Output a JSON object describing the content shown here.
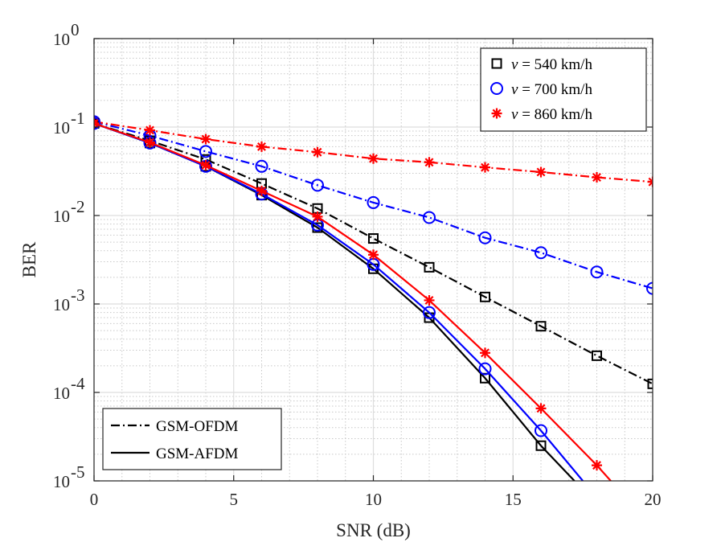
{
  "chart_data": {
    "type": "line",
    "xlabel": "SNR (dB)",
    "ylabel": "BER",
    "xlim": [
      0,
      20
    ],
    "ylim": [
      1e-05,
      1
    ],
    "yscale": "log",
    "x_ticks": [
      0,
      5,
      10,
      15,
      20
    ],
    "x_tick_labels": [
      "0",
      "5",
      "10",
      "15",
      "20"
    ],
    "y_ticks": [
      1e-05,
      0.0001,
      0.001,
      0.01,
      0.1,
      1
    ],
    "y_tick_labels": [
      {
        "base": "10",
        "exp": "-5"
      },
      {
        "base": "10",
        "exp": "-4"
      },
      {
        "base": "10",
        "exp": "-3"
      },
      {
        "base": "10",
        "exp": "-2"
      },
      {
        "base": "10",
        "exp": "-1"
      },
      {
        "base": "10",
        "exp": "0"
      }
    ],
    "grid": true,
    "minor_grid": true,
    "legends": {
      "velocity": {
        "placement": "top-right",
        "entries": [
          {
            "var": "v",
            "eq": " = 540 km/h",
            "color": "#000000",
            "marker": "square"
          },
          {
            "var": "v",
            "eq": " = 700 km/h",
            "color": "#0000ff",
            "marker": "circle"
          },
          {
            "var": "v",
            "eq": " = 860 km/h",
            "color": "#ff0000",
            "marker": "star"
          }
        ]
      },
      "scheme": {
        "placement": "bottom-left",
        "entries": [
          {
            "label": "GSM-OFDM",
            "style": "dashdot",
            "color": "#000000"
          },
          {
            "label": "GSM-AFDM",
            "style": "solid",
            "color": "#000000"
          }
        ]
      }
    },
    "series": [
      {
        "scheme": "GSM-OFDM",
        "velocity": "540 km/h",
        "color": "#000000",
        "marker": "square",
        "style": "dashdot",
        "x": [
          0,
          2,
          4,
          6,
          8,
          10,
          12,
          14,
          16,
          18,
          20
        ],
        "y": [
          0.11,
          0.07,
          0.043,
          0.023,
          0.012,
          0.0055,
          0.0026,
          0.0012,
          0.00056,
          0.00026,
          0.000125
        ]
      },
      {
        "scheme": "GSM-OFDM",
        "velocity": "700 km/h",
        "color": "#0000ff",
        "marker": "circle",
        "style": "dashdot",
        "x": [
          0,
          2,
          4,
          6,
          8,
          10,
          12,
          14,
          16,
          18,
          20
        ],
        "y": [
          0.115,
          0.08,
          0.053,
          0.036,
          0.022,
          0.014,
          0.0095,
          0.0056,
          0.0038,
          0.0023,
          0.0015
        ]
      },
      {
        "scheme": "GSM-OFDM",
        "velocity": "860 km/h",
        "color": "#ff0000",
        "marker": "star",
        "style": "dashdot",
        "x": [
          0,
          2,
          4,
          6,
          8,
          10,
          12,
          14,
          16,
          18,
          20
        ],
        "y": [
          0.115,
          0.092,
          0.073,
          0.06,
          0.052,
          0.044,
          0.04,
          0.035,
          0.031,
          0.027,
          0.024
        ]
      },
      {
        "scheme": "GSM-AFDM",
        "velocity": "540 km/h",
        "color": "#000000",
        "marker": "square",
        "style": "solid",
        "x": [
          0,
          2,
          4,
          6,
          8,
          10,
          12,
          14,
          16,
          17.2
        ],
        "y": [
          0.11,
          0.066,
          0.036,
          0.017,
          0.0073,
          0.0025,
          0.0007,
          0.000145,
          2.5e-05,
          1e-05
        ],
        "marker_indices": [
          0,
          1,
          2,
          3,
          4,
          5,
          6,
          7,
          8
        ]
      },
      {
        "scheme": "GSM-AFDM",
        "velocity": "700 km/h",
        "color": "#0000ff",
        "marker": "circle",
        "style": "solid",
        "x": [
          0,
          2,
          4,
          6,
          8,
          10,
          12,
          14,
          16,
          17.5
        ],
        "y": [
          0.11,
          0.066,
          0.036,
          0.0175,
          0.0078,
          0.0028,
          0.0008,
          0.000185,
          3.7e-05,
          1e-05
        ],
        "marker_indices": [
          0,
          1,
          2,
          3,
          4,
          5,
          6,
          7,
          8
        ]
      },
      {
        "scheme": "GSM-AFDM",
        "velocity": "860 km/h",
        "color": "#ff0000",
        "marker": "star",
        "style": "solid",
        "x": [
          0,
          2,
          4,
          6,
          8,
          10,
          12,
          14,
          16,
          18,
          18.5
        ],
        "y": [
          0.11,
          0.067,
          0.037,
          0.019,
          0.0097,
          0.0036,
          0.0011,
          0.00028,
          6.6e-05,
          1.5e-05,
          1e-05
        ],
        "marker_indices": [
          0,
          1,
          2,
          3,
          4,
          5,
          6,
          7,
          8,
          9
        ]
      }
    ]
  }
}
